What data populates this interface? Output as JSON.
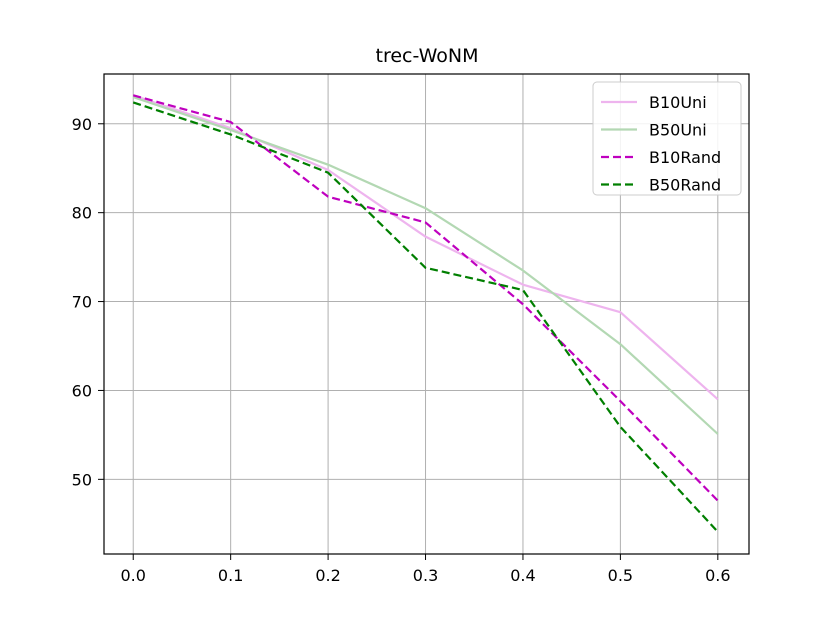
{
  "chart_data": {
    "type": "line",
    "title": "trec-WoNM",
    "xlabel": "",
    "ylabel": "",
    "x": [
      0.0,
      0.1,
      0.2,
      0.3,
      0.4,
      0.5,
      0.6
    ],
    "x_tick_labels": [
      "0.0",
      "0.1",
      "0.2",
      "0.3",
      "0.4",
      "0.5",
      "0.6"
    ],
    "y_ticks": [
      50,
      60,
      70,
      80,
      90
    ],
    "y_tick_labels": [
      "50",
      "60",
      "70",
      "80",
      "90"
    ],
    "xlim": [
      -0.03,
      0.632
    ],
    "ylim": [
      41.6,
      95.6
    ],
    "grid": true,
    "legend_position": "top-right",
    "series": [
      {
        "name": "B10Uni",
        "values": [
          93.2,
          89.5,
          84.8,
          77.3,
          71.9,
          68.8,
          59.0
        ],
        "color": "#eeb4ee",
        "dash": "solid"
      },
      {
        "name": "B50Uni",
        "values": [
          93.0,
          89.3,
          85.4,
          80.5,
          73.5,
          65.2,
          55.1
        ],
        "color": "#b3d8b3",
        "dash": "solid"
      },
      {
        "name": "B10Rand",
        "values": [
          93.2,
          90.2,
          81.8,
          78.9,
          69.7,
          58.8,
          47.6
        ],
        "color": "#bf00bf",
        "dash": "dashed"
      },
      {
        "name": "B50Rand",
        "values": [
          92.4,
          88.8,
          84.5,
          73.8,
          71.3,
          55.9,
          44.1
        ],
        "color": "#007f00",
        "dash": "dashed"
      }
    ]
  }
}
